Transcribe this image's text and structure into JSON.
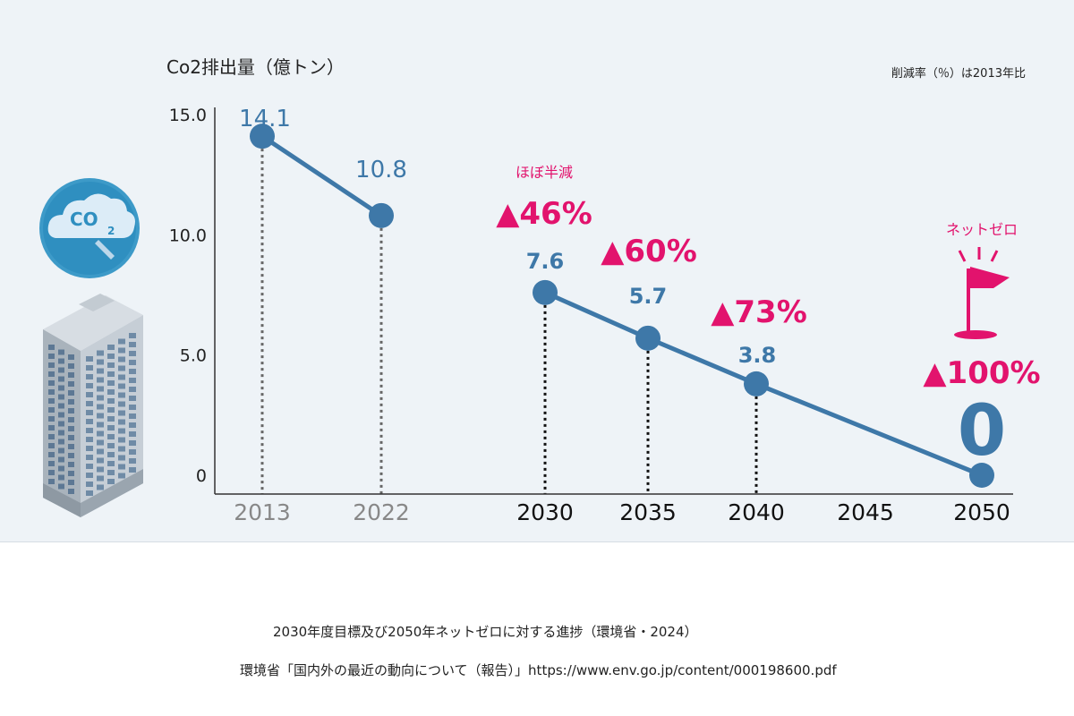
{
  "chart_data": {
    "type": "line",
    "title": "Co2排出量（億トン）",
    "note": "削減率（％）は2013年比",
    "ylim": [
      0,
      15
    ],
    "yticks": [
      {
        "value": 0,
        "label": "0"
      },
      {
        "value": 5,
        "label": "5.0"
      },
      {
        "value": 10,
        "label": "10.0"
      },
      {
        "value": 15,
        "label": "15.0"
      }
    ],
    "xticks": [
      {
        "year": 2013,
        "label": "2013",
        "style": "past"
      },
      {
        "year": 2022,
        "label": "2022",
        "style": "past"
      },
      {
        "year": 2030,
        "label": "2030",
        "style": "target"
      },
      {
        "year": 2035,
        "label": "2035",
        "style": "target"
      },
      {
        "year": 2040,
        "label": "2040",
        "style": "target"
      },
      {
        "year": 2045,
        "label": "2045",
        "style": "target"
      },
      {
        "year": 2050,
        "label": "2050",
        "style": "target"
      }
    ],
    "series": [
      {
        "segment": "actual",
        "points": [
          {
            "year": 2013,
            "value": 14.1,
            "label": "14.1"
          },
          {
            "year": 2022,
            "value": 10.8,
            "label": "10.8"
          }
        ]
      },
      {
        "segment": "target",
        "points": [
          {
            "year": 2030,
            "value": 7.6,
            "label": "7.6"
          },
          {
            "year": 2035,
            "value": 5.7,
            "label": "5.7"
          },
          {
            "year": 2040,
            "value": 3.8,
            "label": "3.8"
          },
          {
            "year": 2050,
            "value": 0,
            "label": "0"
          }
        ]
      }
    ],
    "reductions": [
      {
        "year": 2030,
        "label": "▲46%",
        "note": "ほぼ半減"
      },
      {
        "year": 2035,
        "label": "▲60%"
      },
      {
        "year": 2040,
        "label": "▲73%"
      },
      {
        "year": 2050,
        "label": "▲100%",
        "note": "ネットゼロ"
      }
    ],
    "co2_badge": "CO2",
    "colors": {
      "line": "#3e78a8",
      "value_label": "#3e78a8",
      "reduction": "#e2136d",
      "axis": "#333333",
      "past_tick": "#888888",
      "target_tick": "#111111",
      "panel_bg": "#eef3f7"
    }
  },
  "caption": {
    "title": "2030年度目標及び2050年ネットゼロに対する進捗（環境省・2024）",
    "source": "環境省「国内外の最近の動向について（報告）」https://www.env.go.jp/content/000198600.pdf"
  }
}
